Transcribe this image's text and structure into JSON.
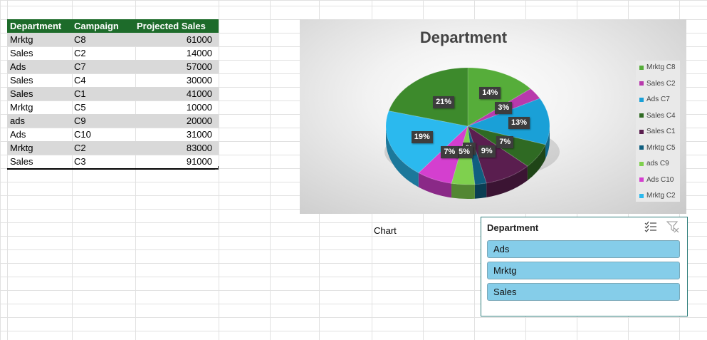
{
  "table": {
    "headers": [
      "Department",
      "Campaign",
      "Projected Sales"
    ],
    "rows": [
      [
        "Mrktg",
        "C8",
        "61000"
      ],
      [
        "Sales",
        "C2",
        "14000"
      ],
      [
        "Ads",
        "C7",
        "57000"
      ],
      [
        "Sales",
        "C4",
        "30000"
      ],
      [
        "Sales",
        "C1",
        "41000"
      ],
      [
        "Mrktg",
        "C5",
        "10000"
      ],
      [
        "ads",
        "C9",
        "20000"
      ],
      [
        "Ads",
        "C10",
        "31000"
      ],
      [
        "Mrktg",
        "C2",
        "83000"
      ],
      [
        "Sales",
        "C3",
        "91000"
      ]
    ],
    "header_color": "#1d6b2a",
    "band_color": "#d9d9d9"
  },
  "chart_data": {
    "type": "pie",
    "title": "Department",
    "categories": [
      "Mrktg C8",
      "Sales C2",
      "Ads C7",
      "Sales C4",
      "Sales C1",
      "Mrktg C5",
      "ads C9",
      "Ads C10",
      "Mrktg C2",
      "Sales C3"
    ],
    "values": [
      61000,
      14000,
      57000,
      30000,
      41000,
      10000,
      20000,
      31000,
      83000,
      91000
    ],
    "colors": [
      "#56ad3a",
      "#b83aac",
      "#1aa0d7",
      "#2f6a23",
      "#5a1e4f",
      "#105f80",
      "#7fd04e",
      "#d43fcf",
      "#2bb9ee",
      "#3d8a2c"
    ],
    "legend": [
      "Mrktg C8",
      "Sales C2",
      "Ads C7",
      "Sales C4",
      "Sales C1",
      "Mrktg C5",
      "ads C9",
      "Ads C10",
      "Mrktg C2"
    ],
    "legend_position": "right",
    "data_labels": [
      "14%",
      "3%",
      "13%",
      "7%",
      "9%",
      "%",
      "5%",
      "7%",
      "19%",
      "21%"
    ]
  },
  "chart_caption": "Chart",
  "slicer": {
    "title": "Department",
    "items": [
      "Ads",
      "Mrktg",
      "Sales"
    ],
    "multi_select_icon": "multi-select-icon",
    "clear_filter_icon": "clear-filter-icon"
  }
}
